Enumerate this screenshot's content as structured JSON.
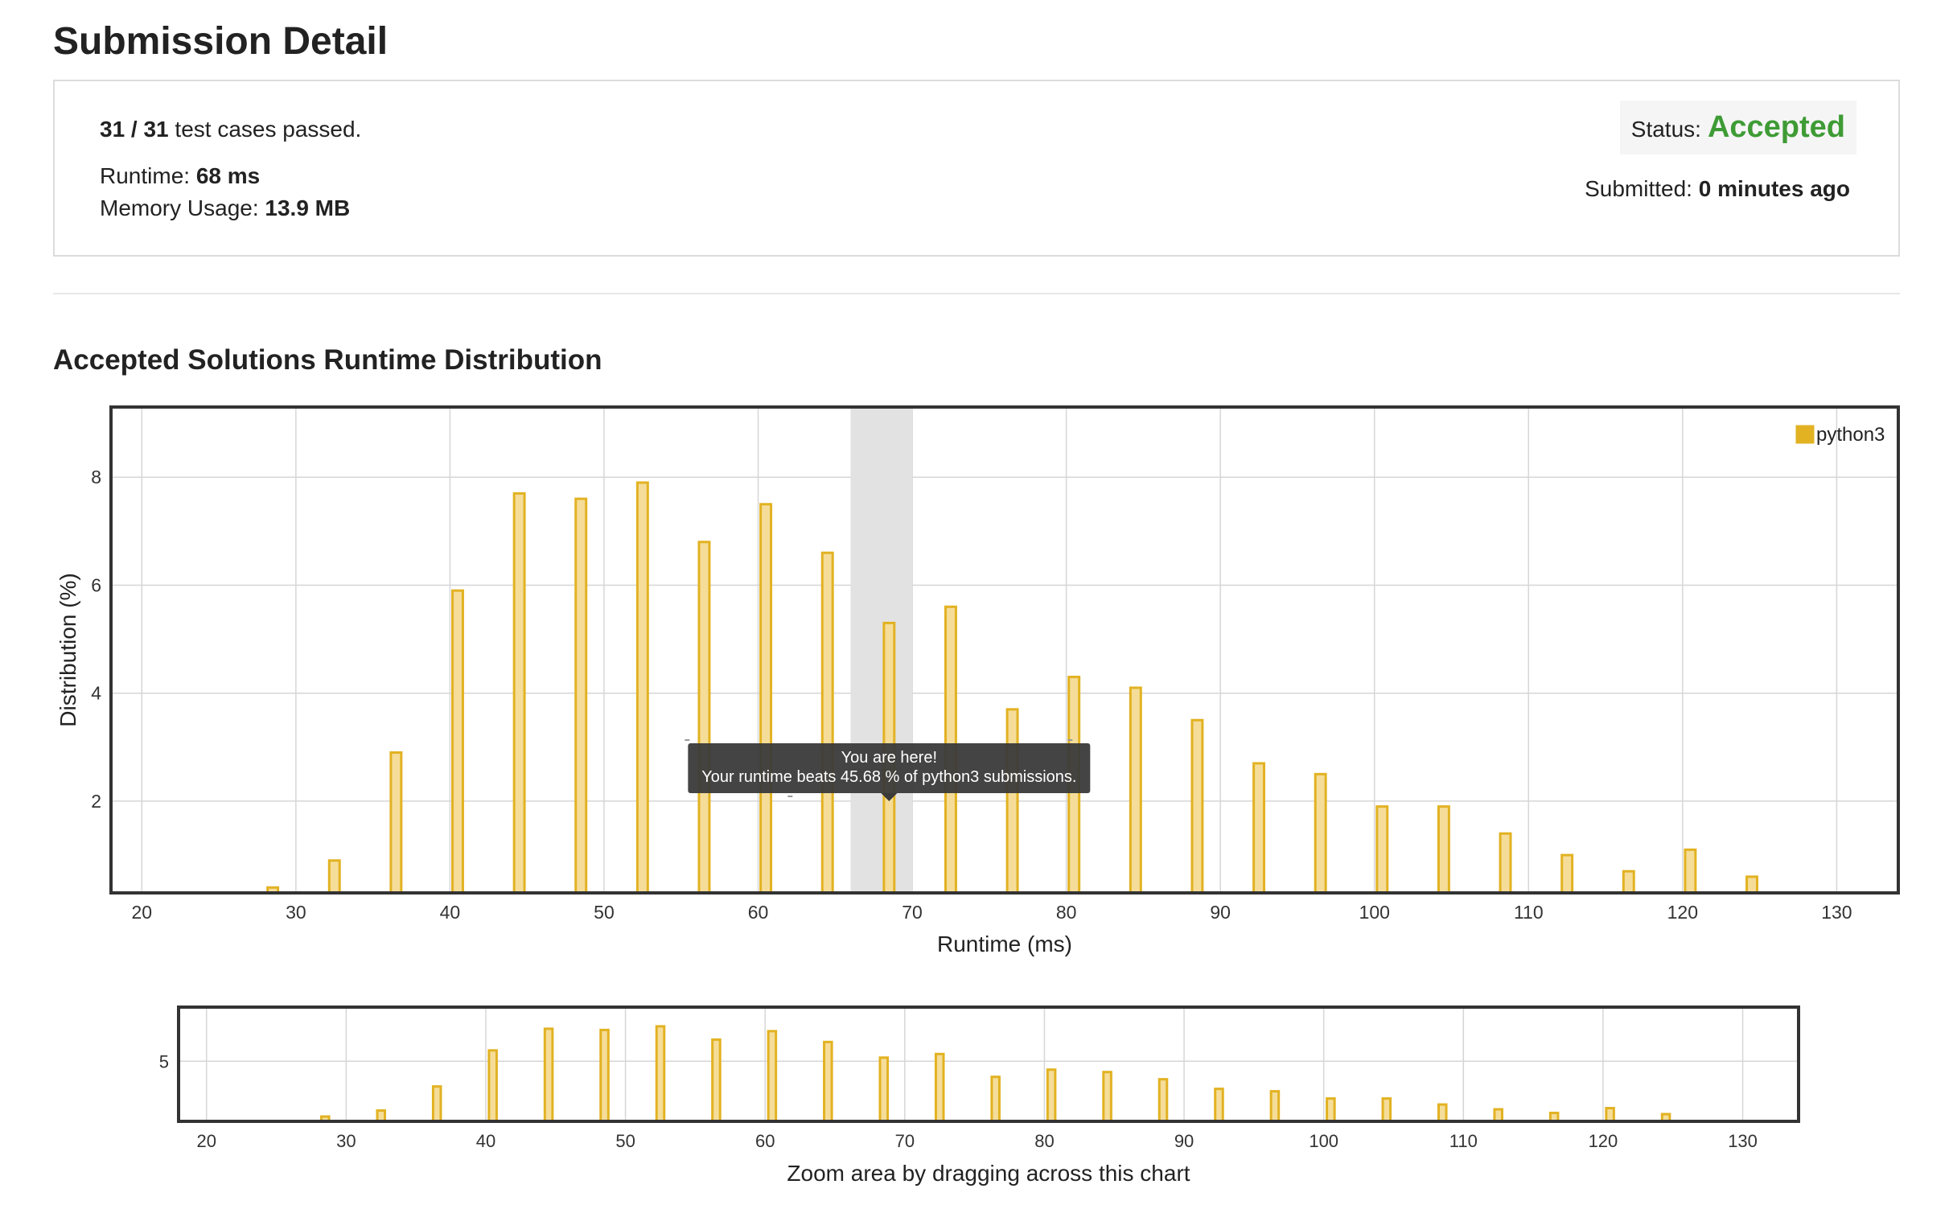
{
  "page": {
    "title": "Submission Detail"
  },
  "summary": {
    "passed": "31 / 31",
    "passed_suffix": " test cases passed.",
    "runtime_label": "Runtime: ",
    "runtime_value": "68 ms",
    "memory_label": "Memory Usage: ",
    "memory_value": "13.9 MB",
    "status_label": "Status:",
    "status_value": "Accepted",
    "submitted_label": "Submitted: ",
    "submitted_value": "0 minutes ago"
  },
  "section": {
    "title": "Accepted Solutions Runtime Distribution"
  },
  "colors": {
    "bar_fill": "#f5dd99",
    "bar_stroke": "#e2b222",
    "accepted": "#3e9b35",
    "highlight": "#e2e2e2",
    "tooltip_bg": "#3a3a3a"
  },
  "tooltip": {
    "line1": "You are here!",
    "line2": "Your runtime beats 45.68 % of python3 submissions."
  },
  "overview": {
    "hint": "Zoom area by dragging across this chart"
  },
  "chart_data": [
    {
      "type": "bar",
      "title": "Accepted Solutions Runtime Distribution",
      "xlabel": "Runtime (ms)",
      "ylabel": "Distribution (%)",
      "xlim": [
        18,
        134
      ],
      "ylim": [
        0.3,
        9.3
      ],
      "xticks": [
        20,
        30,
        40,
        50,
        60,
        70,
        80,
        90,
        100,
        110,
        120,
        130
      ],
      "yticks": [
        2,
        4,
        6,
        8
      ],
      "grid": true,
      "legend": "top-right",
      "highlight_range": [
        66,
        70
      ],
      "series": [
        {
          "name": "python3",
          "x": [
            28.5,
            32.5,
            36.5,
            40.5,
            44.5,
            48.5,
            52.5,
            56.5,
            60.5,
            64.5,
            68.5,
            72.5,
            76.5,
            80.5,
            84.5,
            88.5,
            92.5,
            96.5,
            100.5,
            104.5,
            108.5,
            112.5,
            116.5,
            120.5,
            124.5
          ],
          "values": [
            0.4,
            0.9,
            2.9,
            5.9,
            7.7,
            7.6,
            7.9,
            6.8,
            7.5,
            6.6,
            5.3,
            5.6,
            3.7,
            4.3,
            4.1,
            3.5,
            2.7,
            2.5,
            1.9,
            1.9,
            1.4,
            1.0,
            0.7,
            1.1,
            0.6
          ]
        }
      ]
    },
    {
      "type": "bar",
      "title": "",
      "xlabel": "Zoom area by dragging across this chart",
      "ylabel": "",
      "xlim": [
        18,
        134
      ],
      "ylim": [
        0,
        9.5
      ],
      "xticks": [
        20,
        30,
        40,
        50,
        60,
        70,
        80,
        90,
        100,
        110,
        120,
        130
      ],
      "yticks": [
        5
      ],
      "grid": true,
      "series": [
        {
          "name": "python3",
          "x": [
            28.5,
            32.5,
            36.5,
            40.5,
            44.5,
            48.5,
            52.5,
            56.5,
            60.5,
            64.5,
            68.5,
            72.5,
            76.5,
            80.5,
            84.5,
            88.5,
            92.5,
            96.5,
            100.5,
            104.5,
            108.5,
            112.5,
            116.5,
            120.5,
            124.5
          ],
          "values": [
            0.4,
            0.9,
            2.9,
            5.9,
            7.7,
            7.6,
            7.9,
            6.8,
            7.5,
            6.6,
            5.3,
            5.6,
            3.7,
            4.3,
            4.1,
            3.5,
            2.7,
            2.5,
            1.9,
            1.9,
            1.4,
            1.0,
            0.7,
            1.1,
            0.6
          ]
        }
      ]
    }
  ]
}
